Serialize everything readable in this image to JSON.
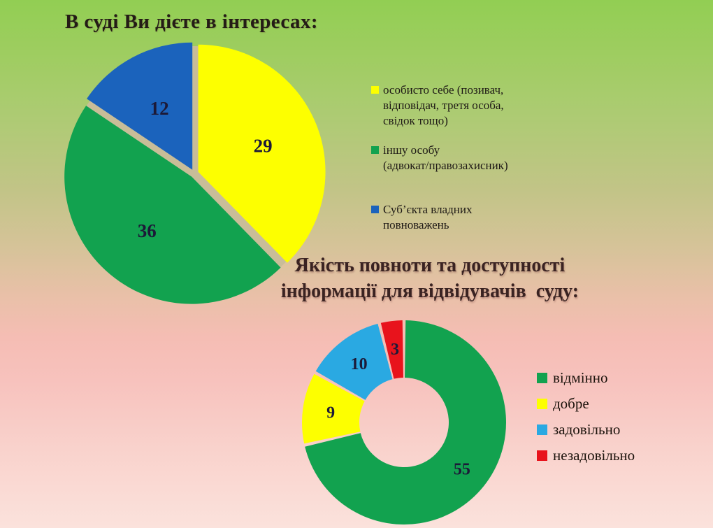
{
  "slide": {
    "background_gradient": [
      "#92ce53",
      "#c9c28d",
      "#f5bdb4",
      "#fbe2dc"
    ]
  },
  "chart_data": [
    {
      "type": "pie",
      "title": "В суді Ви дієте в інтересах:",
      "categories": [
        "особисто себе (позивач, відповідач, третя особа, свідок тощо)",
        "іншу особу (адвокат/правозахисник)",
        "Суб’єкта владних повноважень"
      ],
      "values": [
        29,
        36,
        12
      ],
      "colors": [
        "#fdff00",
        "#12a24f",
        "#1b63bc"
      ],
      "separator_color": "#c9bd98",
      "start_angle_deg": 0,
      "direction": "clockwise",
      "exploded": true,
      "data_labels_shown": true,
      "legend_position": "right",
      "legend_lines": [
        [
          "особисто себе (позивач,",
          "відповідач, третя особа,",
          "свідок тощо)"
        ],
        [
          "іншу особу",
          "(адвокат/правозахисник)"
        ],
        [
          "Суб’єкта владних",
          "повноважень"
        ]
      ]
    },
    {
      "type": "donut",
      "title": "Якість повноти та доступності інформації для відвідувачів суду:",
      "title_lines": [
        "Якість повноти та доступності",
        "інформації для відвідувачів  суду:"
      ],
      "categories": [
        "відмінно",
        "добре",
        "задовільно",
        "незадовільно"
      ],
      "values": [
        55,
        9,
        10,
        3
      ],
      "colors": [
        "#12a24f",
        "#fdff00",
        "#2aa9e2",
        "#e8131c"
      ],
      "start_angle_deg": 0,
      "direction": "clockwise",
      "data_labels_shown": true,
      "legend_position": "right"
    }
  ],
  "label_color": "#1c1a38"
}
